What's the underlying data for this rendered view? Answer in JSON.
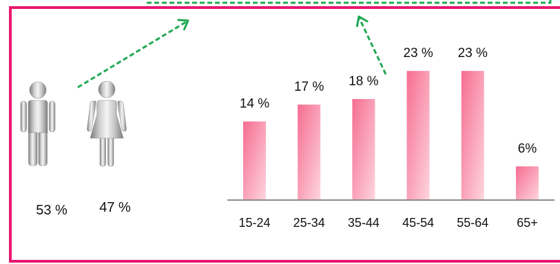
{
  "gender": {
    "male": {
      "icon": "male-icon",
      "label": "53 %"
    },
    "female": {
      "icon": "female-icon",
      "label": "47 %"
    }
  },
  "chart_data": {
    "type": "bar",
    "categories": [
      "15-24",
      "25-34",
      "35-44",
      "45-54",
      "55-64",
      "65+"
    ],
    "values": [
      14,
      17,
      18,
      23,
      23,
      6
    ],
    "data_labels": [
      "14 %",
      "17 %",
      "18 %",
      "23 %",
      "23 %",
      "6%"
    ],
    "ylim": [
      0,
      24
    ],
    "grid": false
  },
  "colors": {
    "frame": "#e8176f",
    "arrow": "#1fa852",
    "bar_dark": "#f66d91",
    "bar_light": "#fdd5de",
    "baseline": "#8c8c8c",
    "text": "#111111"
  }
}
